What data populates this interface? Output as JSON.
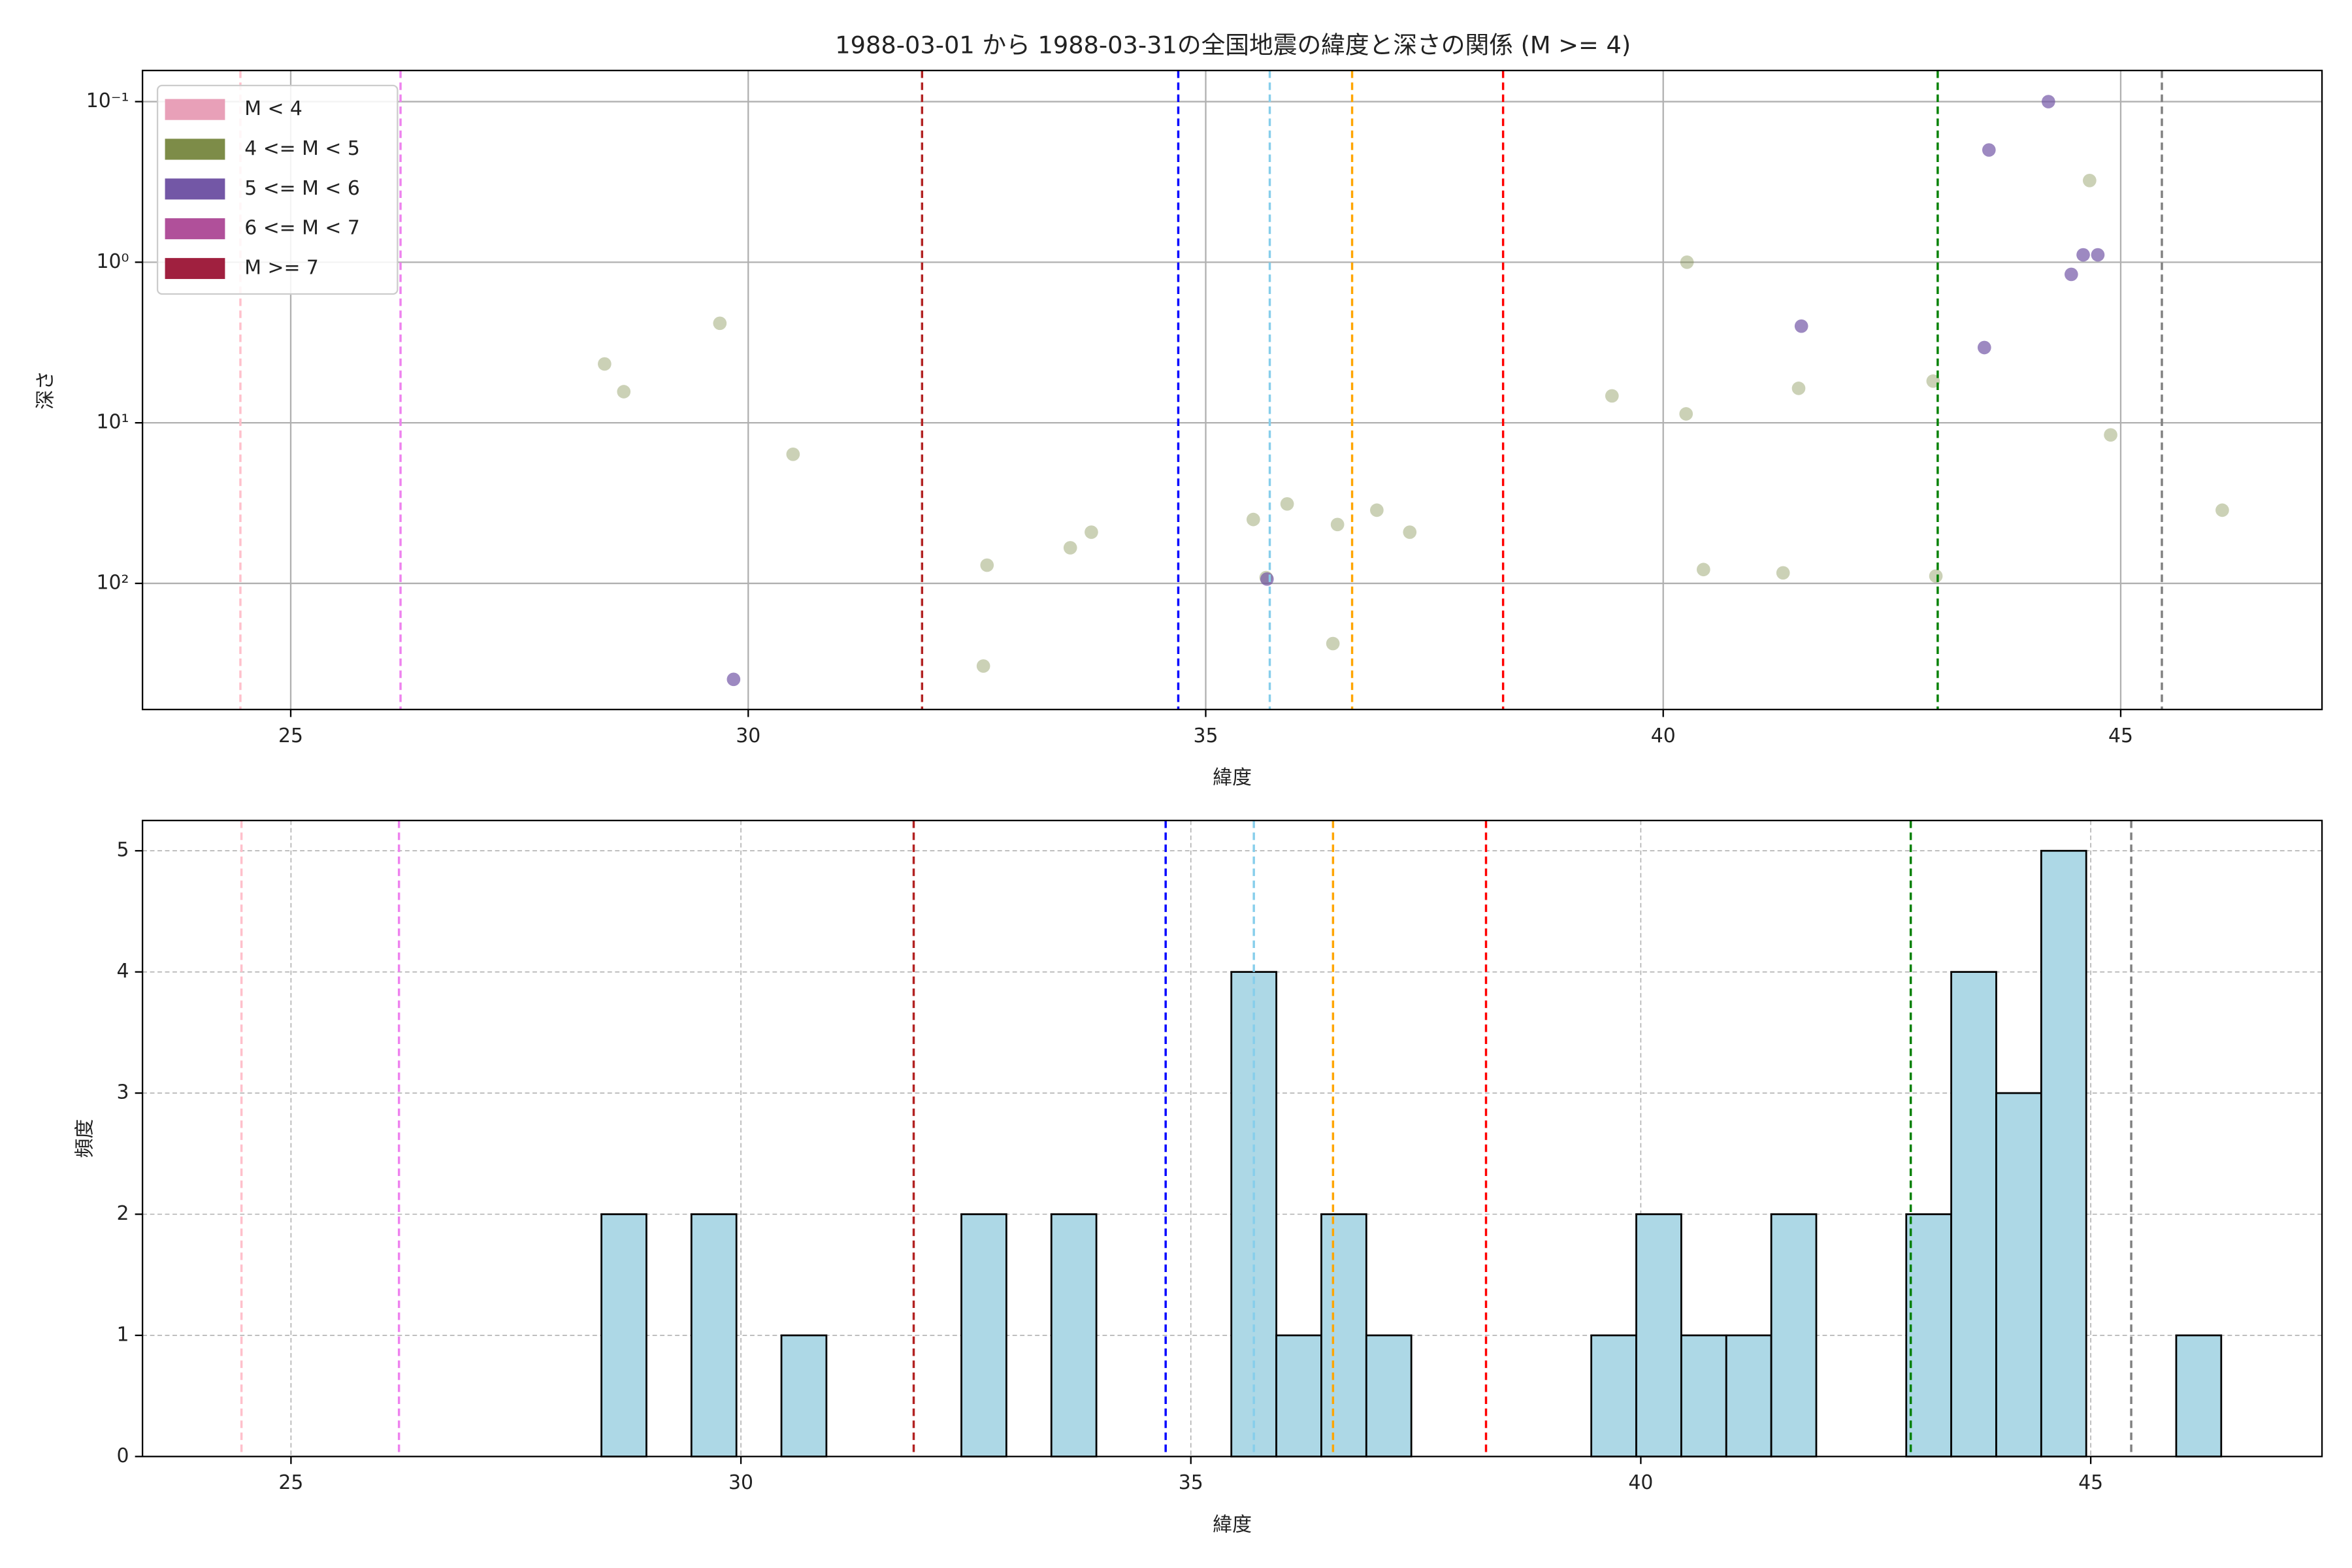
{
  "chart_data": [
    {
      "type": "scatter",
      "title": "1988-03-01 から 1988-03-31の全国地震の緯度と深さの関係 (M >= 4)",
      "x_label": "緯度",
      "y_label": "深さ",
      "xlim": [
        23.38,
        47.2
      ],
      "xticks": [
        25,
        30,
        35,
        40,
        45
      ],
      "ylim": [
        0.064,
        610
      ],
      "yscale": "log",
      "y_inverted": true,
      "yticks": [
        {
          "value": 0.1,
          "label": "10⁻¹"
        },
        {
          "value": 1,
          "label": "10⁰"
        },
        {
          "value": 10,
          "label": "10¹"
        },
        {
          "value": 100,
          "label": "10²"
        }
      ],
      "grid": true,
      "legend": "upper left",
      "series": [
        {
          "name": "M < 4",
          "color": "#e8a0b8",
          "opacity": 0.6,
          "x": [],
          "values": []
        },
        {
          "name": "4 <= M < 5",
          "color": "#7d8c48",
          "opacity": 0.4,
          "x": [
            28.43,
            28.64,
            29.69,
            30.49,
            32.61,
            32.57,
            33.52,
            33.75,
            35.52,
            35.89,
            35.66,
            36.44,
            36.87,
            37.23,
            36.39,
            39.44,
            40.26,
            40.25,
            40.44,
            41.48,
            41.31,
            42.95,
            42.98,
            44.66,
            44.89,
            46.11
          ],
          "values": [
            4.3,
            6.4,
            2.4,
            15.7,
            77,
            327,
            60,
            48,
            40,
            32,
            92,
            43,
            35,
            48,
            237,
            6.8,
            1.0,
            8.8,
            82,
            6.1,
            86,
            5.5,
            90,
            0.31,
            11.9,
            35
          ]
        },
        {
          "name": "5 <= M < 6",
          "color": "#7357a6",
          "opacity": 0.7,
          "x": [
            29.84,
            35.67,
            41.51,
            43.51,
            43.56,
            44.21,
            44.46,
            44.59,
            44.75
          ],
          "values": [
            396,
            94,
            2.5,
            3.4,
            0.2,
            0.1,
            1.19,
            0.9,
            0.9
          ]
        },
        {
          "name": "6 <= M < 7",
          "color": "#b0509a",
          "opacity": 0.7,
          "x": [],
          "values": []
        },
        {
          "name": "M >= 7",
          "color": "#a0203f",
          "opacity": 0.7,
          "x": [],
          "values": []
        }
      ],
      "vlines": [
        {
          "x": 24.45,
          "color": "pink"
        },
        {
          "x": 26.2,
          "color": "violet"
        },
        {
          "x": 31.9,
          "color": "firebrick"
        },
        {
          "x": 34.7,
          "color": "blue"
        },
        {
          "x": 35.7,
          "color": "skyblue"
        },
        {
          "x": 36.6,
          "color": "orange"
        },
        {
          "x": 38.25,
          "color": "red"
        },
        {
          "x": 43.0,
          "color": "green"
        },
        {
          "x": 45.45,
          "color": "gray"
        }
      ]
    },
    {
      "type": "histogram",
      "x_label": "緯度",
      "y_label": "頻度",
      "xlim": [
        23.35,
        47.57
      ],
      "xticks": [
        25,
        30,
        35,
        40,
        45
      ],
      "ylim": [
        0,
        5.25
      ],
      "yticks": [
        0,
        1,
        2,
        3,
        4,
        5
      ],
      "grid": true,
      "color": "#add8e6",
      "bins": [
        28.45,
        28.95,
        29.45,
        29.95,
        30.45,
        30.95,
        31.45,
        31.95,
        32.45,
        32.95,
        33.45,
        33.95,
        34.45,
        34.95,
        35.45,
        35.95,
        36.45,
        36.95,
        37.45,
        37.95,
        38.45,
        38.95,
        39.45,
        39.95,
        40.45,
        40.95,
        41.45,
        41.95,
        42.45,
        42.95,
        43.45,
        43.95,
        44.45,
        44.95,
        45.45,
        45.95,
        46.45
      ],
      "counts": [
        2,
        0,
        2,
        0,
        1,
        0,
        0,
        0,
        2,
        0,
        2,
        0,
        0,
        0,
        4,
        1,
        2,
        1,
        0,
        0,
        0,
        0,
        1,
        2,
        1,
        1,
        2,
        0,
        0,
        2,
        4,
        3,
        5,
        0,
        0,
        1
      ],
      "vlines": [
        {
          "x": 24.45,
          "color": "pink"
        },
        {
          "x": 26.2,
          "color": "violet"
        },
        {
          "x": 31.92,
          "color": "firebrick"
        },
        {
          "x": 34.72,
          "color": "blue"
        },
        {
          "x": 35.7,
          "color": "skyblue"
        },
        {
          "x": 36.58,
          "color": "orange"
        },
        {
          "x": 38.28,
          "color": "red"
        },
        {
          "x": 43.0,
          "color": "green"
        },
        {
          "x": 45.45,
          "color": "gray"
        }
      ]
    }
  ]
}
